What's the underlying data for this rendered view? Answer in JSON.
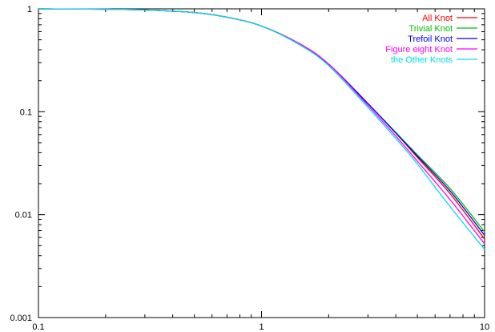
{
  "chart_data": {
    "type": "line",
    "title": "",
    "xlabel": "",
    "ylabel": "",
    "x_scale": "log",
    "y_scale": "log",
    "xlim": [
      0.1,
      10
    ],
    "ylim": [
      0.001,
      1
    ],
    "x_ticks": [
      "0.1",
      "1",
      "10"
    ],
    "y_ticks": [
      "1",
      "0.1",
      "0.01",
      "0.001"
    ],
    "grid": false,
    "legend_position": "top-right",
    "x": [
      0.1,
      0.2,
      0.3,
      0.5,
      0.7,
      1,
      1.5,
      2,
      3,
      4,
      5,
      7,
      10
    ],
    "series": [
      {
        "name": "All Knot",
        "color": "#ff0000",
        "values": [
          1.0,
          0.99,
          0.975,
          0.92,
          0.83,
          0.68,
          0.45,
          0.29,
          0.12,
          0.062,
          0.036,
          0.016,
          0.0058
        ]
      },
      {
        "name": "Trivial Knot",
        "color": "#00c000",
        "values": [
          1.0,
          0.99,
          0.975,
          0.92,
          0.83,
          0.68,
          0.45,
          0.29,
          0.12,
          0.063,
          0.038,
          0.018,
          0.0068
        ]
      },
      {
        "name": "Trefoil Knot",
        "color": "#0000ff",
        "values": [
          1.0,
          0.99,
          0.975,
          0.92,
          0.83,
          0.68,
          0.45,
          0.29,
          0.12,
          0.062,
          0.037,
          0.017,
          0.0063
        ]
      },
      {
        "name": "Figure eight Knot",
        "color": "#ff00ff",
        "values": [
          1.0,
          0.99,
          0.975,
          0.92,
          0.83,
          0.68,
          0.45,
          0.29,
          0.115,
          0.058,
          0.033,
          0.014,
          0.0052
        ]
      },
      {
        "name": "the Other Knots",
        "color": "#00e0e0",
        "values": [
          1.0,
          0.99,
          0.975,
          0.92,
          0.83,
          0.68,
          0.44,
          0.28,
          0.11,
          0.055,
          0.031,
          0.012,
          0.0046
        ]
      }
    ]
  }
}
